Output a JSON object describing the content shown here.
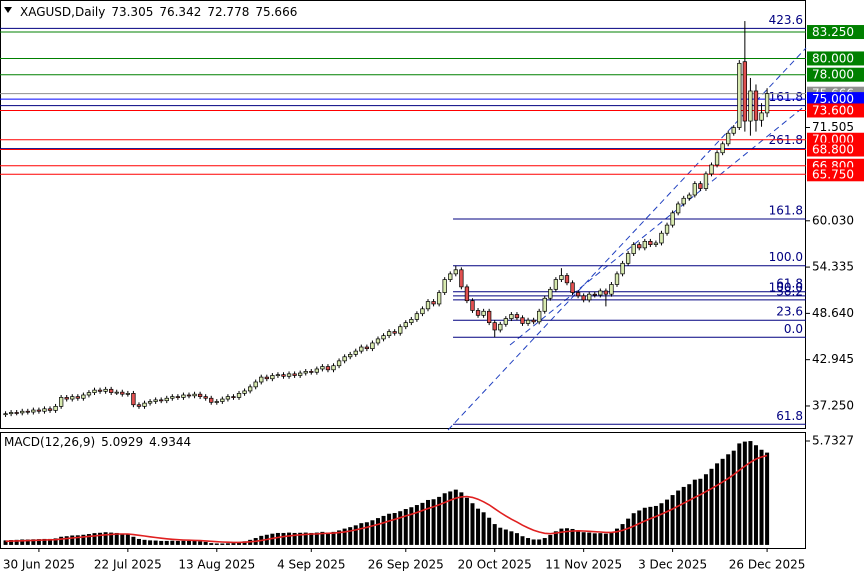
{
  "chart_data": {
    "type": "candlestick",
    "title": "XAGUSD,Daily",
    "bull_color": "#d8eab0",
    "bear_color": "#e05050",
    "candles": [
      [
        36.2,
        36.6,
        35.9,
        36.3
      ],
      [
        36.3,
        36.75,
        36.0,
        36.45
      ],
      [
        36.45,
        36.75,
        36.1,
        36.4
      ],
      [
        36.4,
        36.9,
        36.1,
        36.6
      ],
      [
        36.6,
        36.9,
        36.2,
        36.5
      ],
      [
        36.5,
        37.05,
        36.2,
        36.75
      ],
      [
        36.75,
        37.05,
        36.3,
        36.6
      ],
      [
        36.6,
        37.2,
        36.3,
        36.9
      ],
      [
        36.9,
        37.2,
        36.4,
        36.7
      ],
      [
        36.7,
        37.5,
        36.4,
        37.2
      ],
      [
        37.2,
        38.6,
        36.9,
        38.3
      ],
      [
        38.3,
        38.6,
        37.8,
        38.1
      ],
      [
        38.1,
        38.7,
        37.8,
        38.4
      ],
      [
        38.4,
        38.7,
        37.9,
        38.2
      ],
      [
        38.2,
        38.9,
        37.9,
        38.6
      ],
      [
        38.6,
        39.2,
        38.3,
        38.9
      ],
      [
        38.9,
        39.5,
        38.6,
        39.2
      ],
      [
        39.2,
        39.5,
        38.75,
        39.05
      ],
      [
        39.05,
        39.6,
        38.75,
        39.3
      ],
      [
        39.3,
        39.6,
        38.6,
        38.9
      ],
      [
        38.9,
        39.25,
        38.6,
        38.95
      ],
      [
        38.95,
        39.25,
        38.4,
        38.7
      ],
      [
        38.7,
        39.1,
        38.4,
        38.8
      ],
      [
        38.8,
        39.1,
        37.1,
        37.4
      ],
      [
        37.4,
        37.7,
        36.9,
        37.2
      ],
      [
        37.2,
        37.9,
        36.9,
        37.6
      ],
      [
        37.6,
        38.1,
        37.3,
        37.8
      ],
      [
        37.8,
        38.3,
        37.5,
        38.0
      ],
      [
        38.0,
        38.3,
        37.6,
        37.9
      ],
      [
        37.9,
        38.5,
        37.6,
        38.2
      ],
      [
        38.2,
        38.7,
        37.9,
        38.4
      ],
      [
        38.4,
        38.7,
        38.0,
        38.3
      ],
      [
        38.3,
        38.9,
        38.0,
        38.6
      ],
      [
        38.6,
        38.9,
        38.2,
        38.5
      ],
      [
        38.5,
        39.0,
        38.2,
        38.7
      ],
      [
        38.7,
        39.0,
        38.1,
        38.4
      ],
      [
        38.4,
        38.7,
        37.9,
        38.2
      ],
      [
        38.2,
        38.5,
        37.4,
        37.7
      ],
      [
        37.7,
        38.1,
        37.4,
        37.8
      ],
      [
        37.8,
        38.4,
        37.5,
        38.1
      ],
      [
        38.1,
        38.7,
        37.8,
        38.4
      ],
      [
        38.4,
        38.7,
        38.0,
        38.3
      ],
      [
        38.3,
        39.1,
        38.0,
        38.8
      ],
      [
        38.8,
        39.4,
        38.5,
        39.1
      ],
      [
        39.1,
        39.9,
        38.8,
        39.6
      ],
      [
        39.6,
        40.5,
        39.3,
        40.2
      ],
      [
        40.2,
        41.1,
        39.9,
        40.8
      ],
      [
        40.8,
        41.1,
        40.3,
        40.6
      ],
      [
        40.6,
        41.3,
        40.3,
        41.0
      ],
      [
        41.0,
        41.4,
        40.7,
        41.1
      ],
      [
        41.1,
        41.4,
        40.6,
        40.9
      ],
      [
        40.9,
        41.5,
        40.6,
        41.2
      ],
      [
        41.2,
        41.5,
        40.7,
        41.0
      ],
      [
        41.0,
        41.6,
        40.7,
        41.3
      ],
      [
        41.3,
        41.8,
        41.0,
        41.5
      ],
      [
        41.5,
        41.8,
        41.1,
        41.4
      ],
      [
        41.4,
        42.1,
        41.1,
        41.8
      ],
      [
        41.8,
        42.4,
        41.5,
        42.1
      ],
      [
        42.1,
        42.4,
        41.4,
        41.7
      ],
      [
        41.7,
        42.5,
        41.4,
        42.2
      ],
      [
        42.2,
        43.1,
        41.9,
        42.8
      ],
      [
        42.8,
        43.6,
        42.5,
        43.3
      ],
      [
        43.3,
        43.9,
        43.0,
        43.6
      ],
      [
        43.6,
        44.3,
        43.3,
        44.0
      ],
      [
        44.0,
        44.8,
        43.7,
        44.5
      ],
      [
        44.5,
        44.8,
        44.0,
        44.3
      ],
      [
        44.3,
        45.3,
        44.0,
        45.0
      ],
      [
        45.0,
        45.8,
        44.7,
        45.5
      ],
      [
        45.5,
        46.2,
        45.2,
        45.9
      ],
      [
        45.9,
        46.7,
        45.6,
        46.4
      ],
      [
        46.4,
        46.7,
        45.9,
        46.2
      ],
      [
        46.2,
        47.3,
        45.9,
        47.0
      ],
      [
        47.0,
        47.8,
        46.7,
        47.5
      ],
      [
        47.5,
        48.2,
        47.2,
        47.9
      ],
      [
        47.9,
        48.9,
        47.6,
        48.6
      ],
      [
        48.6,
        49.5,
        48.3,
        49.2
      ],
      [
        49.2,
        50.4,
        48.9,
        50.1
      ],
      [
        50.1,
        50.4,
        49.5,
        49.8
      ],
      [
        49.8,
        51.5,
        49.5,
        51.2
      ],
      [
        51.2,
        53.1,
        50.9,
        52.8
      ],
      [
        52.8,
        53.8,
        52.5,
        53.5
      ],
      [
        53.5,
        54.5,
        53.2,
        54.0
      ],
      [
        54.0,
        54.3,
        51.6,
        51.9
      ],
      [
        51.9,
        52.2,
        49.9,
        50.2
      ],
      [
        50.2,
        50.5,
        48.7,
        49.0
      ],
      [
        49.0,
        49.3,
        48.1,
        48.4
      ],
      [
        48.4,
        49.2,
        48.1,
        48.9
      ],
      [
        48.9,
        49.2,
        47.2,
        47.5
      ],
      [
        47.5,
        47.8,
        45.7,
        46.6
      ],
      [
        46.6,
        47.6,
        46.3,
        47.3
      ],
      [
        47.3,
        48.3,
        47.0,
        48.0
      ],
      [
        48.0,
        48.8,
        47.7,
        48.5
      ],
      [
        48.5,
        48.8,
        47.8,
        48.1
      ],
      [
        48.1,
        48.4,
        47.1,
        47.4
      ],
      [
        47.4,
        48.1,
        47.1,
        47.8
      ],
      [
        47.8,
        48.1,
        47.3,
        47.6
      ],
      [
        47.6,
        49.2,
        47.3,
        48.9
      ],
      [
        48.9,
        50.8,
        48.6,
        50.5
      ],
      [
        50.5,
        51.9,
        50.2,
        51.6
      ],
      [
        51.6,
        53.1,
        51.3,
        52.8
      ],
      [
        52.8,
        54.2,
        52.5,
        53.3
      ],
      [
        53.3,
        53.6,
        52.1,
        52.4
      ],
      [
        52.4,
        52.7,
        50.9,
        51.2
      ],
      [
        51.2,
        51.5,
        50.5,
        50.8
      ],
      [
        50.8,
        51.1,
        50.0,
        50.3
      ],
      [
        50.3,
        51.3,
        50.0,
        51.0
      ],
      [
        51.0,
        51.3,
        50.6,
        50.9
      ],
      [
        50.9,
        51.7,
        50.6,
        51.4
      ],
      [
        51.4,
        51.7,
        49.5,
        51.0
      ],
      [
        51.0,
        52.5,
        50.7,
        52.2
      ],
      [
        52.2,
        53.8,
        51.9,
        53.5
      ],
      [
        53.5,
        55.1,
        53.2,
        54.8
      ],
      [
        54.8,
        56.3,
        54.5,
        56.0
      ],
      [
        56.0,
        57.4,
        55.7,
        57.1
      ],
      [
        57.1,
        57.4,
        56.4,
        56.7
      ],
      [
        56.7,
        57.8,
        56.4,
        57.5
      ],
      [
        57.5,
        57.8,
        56.8,
        57.1
      ],
      [
        57.1,
        57.6,
        56.8,
        57.3
      ],
      [
        57.3,
        58.8,
        57.0,
        58.5
      ],
      [
        58.5,
        59.8,
        58.2,
        59.5
      ],
      [
        59.5,
        61.3,
        59.2,
        61.0
      ],
      [
        61.0,
        62.4,
        60.7,
        62.1
      ],
      [
        62.1,
        63.1,
        61.8,
        62.8
      ],
      [
        62.8,
        63.5,
        62.5,
        63.2
      ],
      [
        63.2,
        64.9,
        62.9,
        64.6
      ],
      [
        64.6,
        64.9,
        63.7,
        64.0
      ],
      [
        64.0,
        66.1,
        63.7,
        65.8
      ],
      [
        65.8,
        67.2,
        65.5,
        66.9
      ],
      [
        66.9,
        68.7,
        66.6,
        68.4
      ],
      [
        68.4,
        69.8,
        68.1,
        69.5
      ],
      [
        69.5,
        71.1,
        69.2,
        70.8
      ],
      [
        70.8,
        71.8,
        70.5,
        71.5
      ],
      [
        71.5,
        79.8,
        71.2,
        79.4
      ],
      [
        79.6,
        84.6,
        71.0,
        72.3
      ],
      [
        72.3,
        77.6,
        70.5,
        76.0
      ],
      [
        76.0,
        76.8,
        71.0,
        72.4
      ],
      [
        72.4,
        74.5,
        71.6,
        73.3
      ],
      [
        73.305,
        76.342,
        72.778,
        75.666
      ]
    ],
    "xlim": [
      -1,
      144
    ],
    "xticks": [
      {
        "value": 6,
        "label": "30 Jun 2025"
      },
      {
        "value": 22,
        "label": "22 Jul 2025"
      },
      {
        "value": 38,
        "label": "13 Aug 2025"
      },
      {
        "value": 55,
        "label": "4 Sep 2025"
      },
      {
        "value": 72,
        "label": "26 Sep 2025"
      },
      {
        "value": 88,
        "label": "20 Oct 2025"
      },
      {
        "value": 104,
        "label": "11 Nov 2025"
      },
      {
        "value": 120,
        "label": "3 Dec 2025"
      },
      {
        "value": 137,
        "label": "26 Dec 2025"
      }
    ],
    "ylim": [
      34.54,
      87.19
    ],
    "yticks": [
      {
        "value": 37.25,
        "label": "37.250"
      },
      {
        "value": 42.945,
        "label": "42.945"
      },
      {
        "value": 48.64,
        "label": "48.640"
      },
      {
        "value": 54.335,
        "label": "54.335"
      },
      {
        "value": 60.03,
        "label": "60.030"
      },
      {
        "value": 71.505,
        "label": "71.505"
      }
    ],
    "levels": [
      {
        "value": 83.25,
        "label": "83.250",
        "color": "#008000"
      },
      {
        "value": 80,
        "label": "80.000",
        "color": "#008000"
      },
      {
        "value": 78,
        "label": "78.000",
        "color": "#008000"
      },
      {
        "value": 75.666,
        "label": "75.666",
        "color": "#909090"
      },
      {
        "value": 75,
        "label": "75.000",
        "color": "#0000ff"
      },
      {
        "value": 73.6,
        "label": "73.600",
        "color": "#ff0000"
      },
      {
        "value": 70,
        "label": "70.000",
        "color": "#ff0000"
      },
      {
        "value": 68.8,
        "label": "68.800",
        "color": "#ff0000"
      },
      {
        "value": 66.8,
        "label": "66.800",
        "color": "#ff0000"
      },
      {
        "value": 65.75,
        "label": "65.750",
        "color": "#ff0000"
      }
    ],
    "fib_color": "#000080",
    "fib_upper": [
      {
        "value": 83.7,
        "label": "423.6"
      },
      {
        "value": 74.2,
        "label": "161.8"
      },
      {
        "value": 68.9,
        "label": "261.8"
      }
    ],
    "fib_lower": [
      {
        "value": 60.25,
        "label": "161.8"
      },
      {
        "value": 54.5,
        "label": "100.0"
      },
      {
        "value": 51.3,
        "label": "61.8"
      },
      {
        "value": 50.8,
        "label": "100.0"
      },
      {
        "value": 50.3,
        "label": "38.2"
      },
      {
        "value": 47.8,
        "label": "23.6"
      },
      {
        "value": 45.7,
        "label": "0.0"
      },
      {
        "value": 35.0,
        "label": "61.8"
      }
    ],
    "macd": {
      "title": "MACD(12,26,9)",
      "hist_color": "#000000",
      "signal_color": "#e02020",
      "ylim": [
        -0.17,
        6.23
      ],
      "yticks": [
        5.7327
      ],
      "histogram": [
        0.25,
        0.27,
        0.28,
        0.3,
        0.3,
        0.31,
        0.32,
        0.33,
        0.33,
        0.36,
        0.45,
        0.48,
        0.52,
        0.53,
        0.56,
        0.6,
        0.65,
        0.67,
        0.7,
        0.68,
        0.66,
        0.62,
        0.6,
        0.45,
        0.33,
        0.28,
        0.25,
        0.24,
        0.22,
        0.22,
        0.23,
        0.22,
        0.23,
        0.22,
        0.22,
        0.2,
        0.17,
        0.1,
        0.08,
        0.08,
        0.09,
        0.1,
        0.14,
        0.2,
        0.28,
        0.38,
        0.5,
        0.56,
        0.62,
        0.66,
        0.66,
        0.68,
        0.66,
        0.67,
        0.68,
        0.66,
        0.68,
        0.72,
        0.68,
        0.72,
        0.8,
        0.9,
        0.98,
        1.08,
        1.2,
        1.25,
        1.36,
        1.48,
        1.6,
        1.72,
        1.76,
        1.86,
        1.98,
        2.08,
        2.2,
        2.32,
        2.48,
        2.52,
        2.65,
        2.85,
        2.95,
        3.05,
        2.9,
        2.6,
        2.3,
        2.0,
        1.8,
        1.5,
        1.15,
        0.95,
        0.85,
        0.75,
        0.65,
        0.48,
        0.38,
        0.3,
        0.3,
        0.38,
        0.55,
        0.75,
        0.9,
        0.92,
        0.88,
        0.8,
        0.7,
        0.68,
        0.64,
        0.65,
        0.62,
        0.7,
        0.9,
        1.15,
        1.45,
        1.75,
        1.9,
        2.05,
        2.1,
        2.15,
        2.3,
        2.5,
        2.75,
        3.0,
        3.2,
        3.35,
        3.6,
        3.65,
        3.9,
        4.2,
        4.5,
        4.75,
        5.0,
        5.2,
        5.6,
        5.7,
        5.73,
        5.5,
        5.25,
        5.0929
      ],
      "signal": [
        0.2,
        0.21,
        0.22,
        0.23,
        0.24,
        0.25,
        0.26,
        0.27,
        0.28,
        0.29,
        0.32,
        0.35,
        0.38,
        0.41,
        0.44,
        0.47,
        0.5,
        0.53,
        0.56,
        0.58,
        0.6,
        0.6,
        0.6,
        0.57,
        0.53,
        0.49,
        0.45,
        0.41,
        0.37,
        0.34,
        0.31,
        0.29,
        0.27,
        0.26,
        0.25,
        0.24,
        0.22,
        0.2,
        0.18,
        0.16,
        0.15,
        0.14,
        0.14,
        0.15,
        0.17,
        0.2,
        0.25,
        0.3,
        0.36,
        0.41,
        0.46,
        0.5,
        0.53,
        0.56,
        0.58,
        0.6,
        0.61,
        0.63,
        0.64,
        0.65,
        0.68,
        0.72,
        0.77,
        0.83,
        0.9,
        0.97,
        1.05,
        1.13,
        1.22,
        1.32,
        1.41,
        1.5,
        1.6,
        1.69,
        1.79,
        1.9,
        2.01,
        2.11,
        2.22,
        2.34,
        2.46,
        2.58,
        2.65,
        2.67,
        2.62,
        2.52,
        2.38,
        2.21,
        2.0,
        1.79,
        1.6,
        1.42,
        1.26,
        1.09,
        0.94,
        0.81,
        0.71,
        0.64,
        0.62,
        0.65,
        0.7,
        0.74,
        0.77,
        0.78,
        0.77,
        0.75,
        0.73,
        0.71,
        0.69,
        0.69,
        0.73,
        0.8,
        0.91,
        1.04,
        1.18,
        1.32,
        1.45,
        1.57,
        1.7,
        1.84,
        1.98,
        2.14,
        2.3,
        2.46,
        2.62,
        2.77,
        2.94,
        3.11,
        3.29,
        3.47,
        3.67,
        3.88,
        4.12,
        4.35,
        4.56,
        4.74,
        4.85,
        4.9344
      ]
    }
  }
}
